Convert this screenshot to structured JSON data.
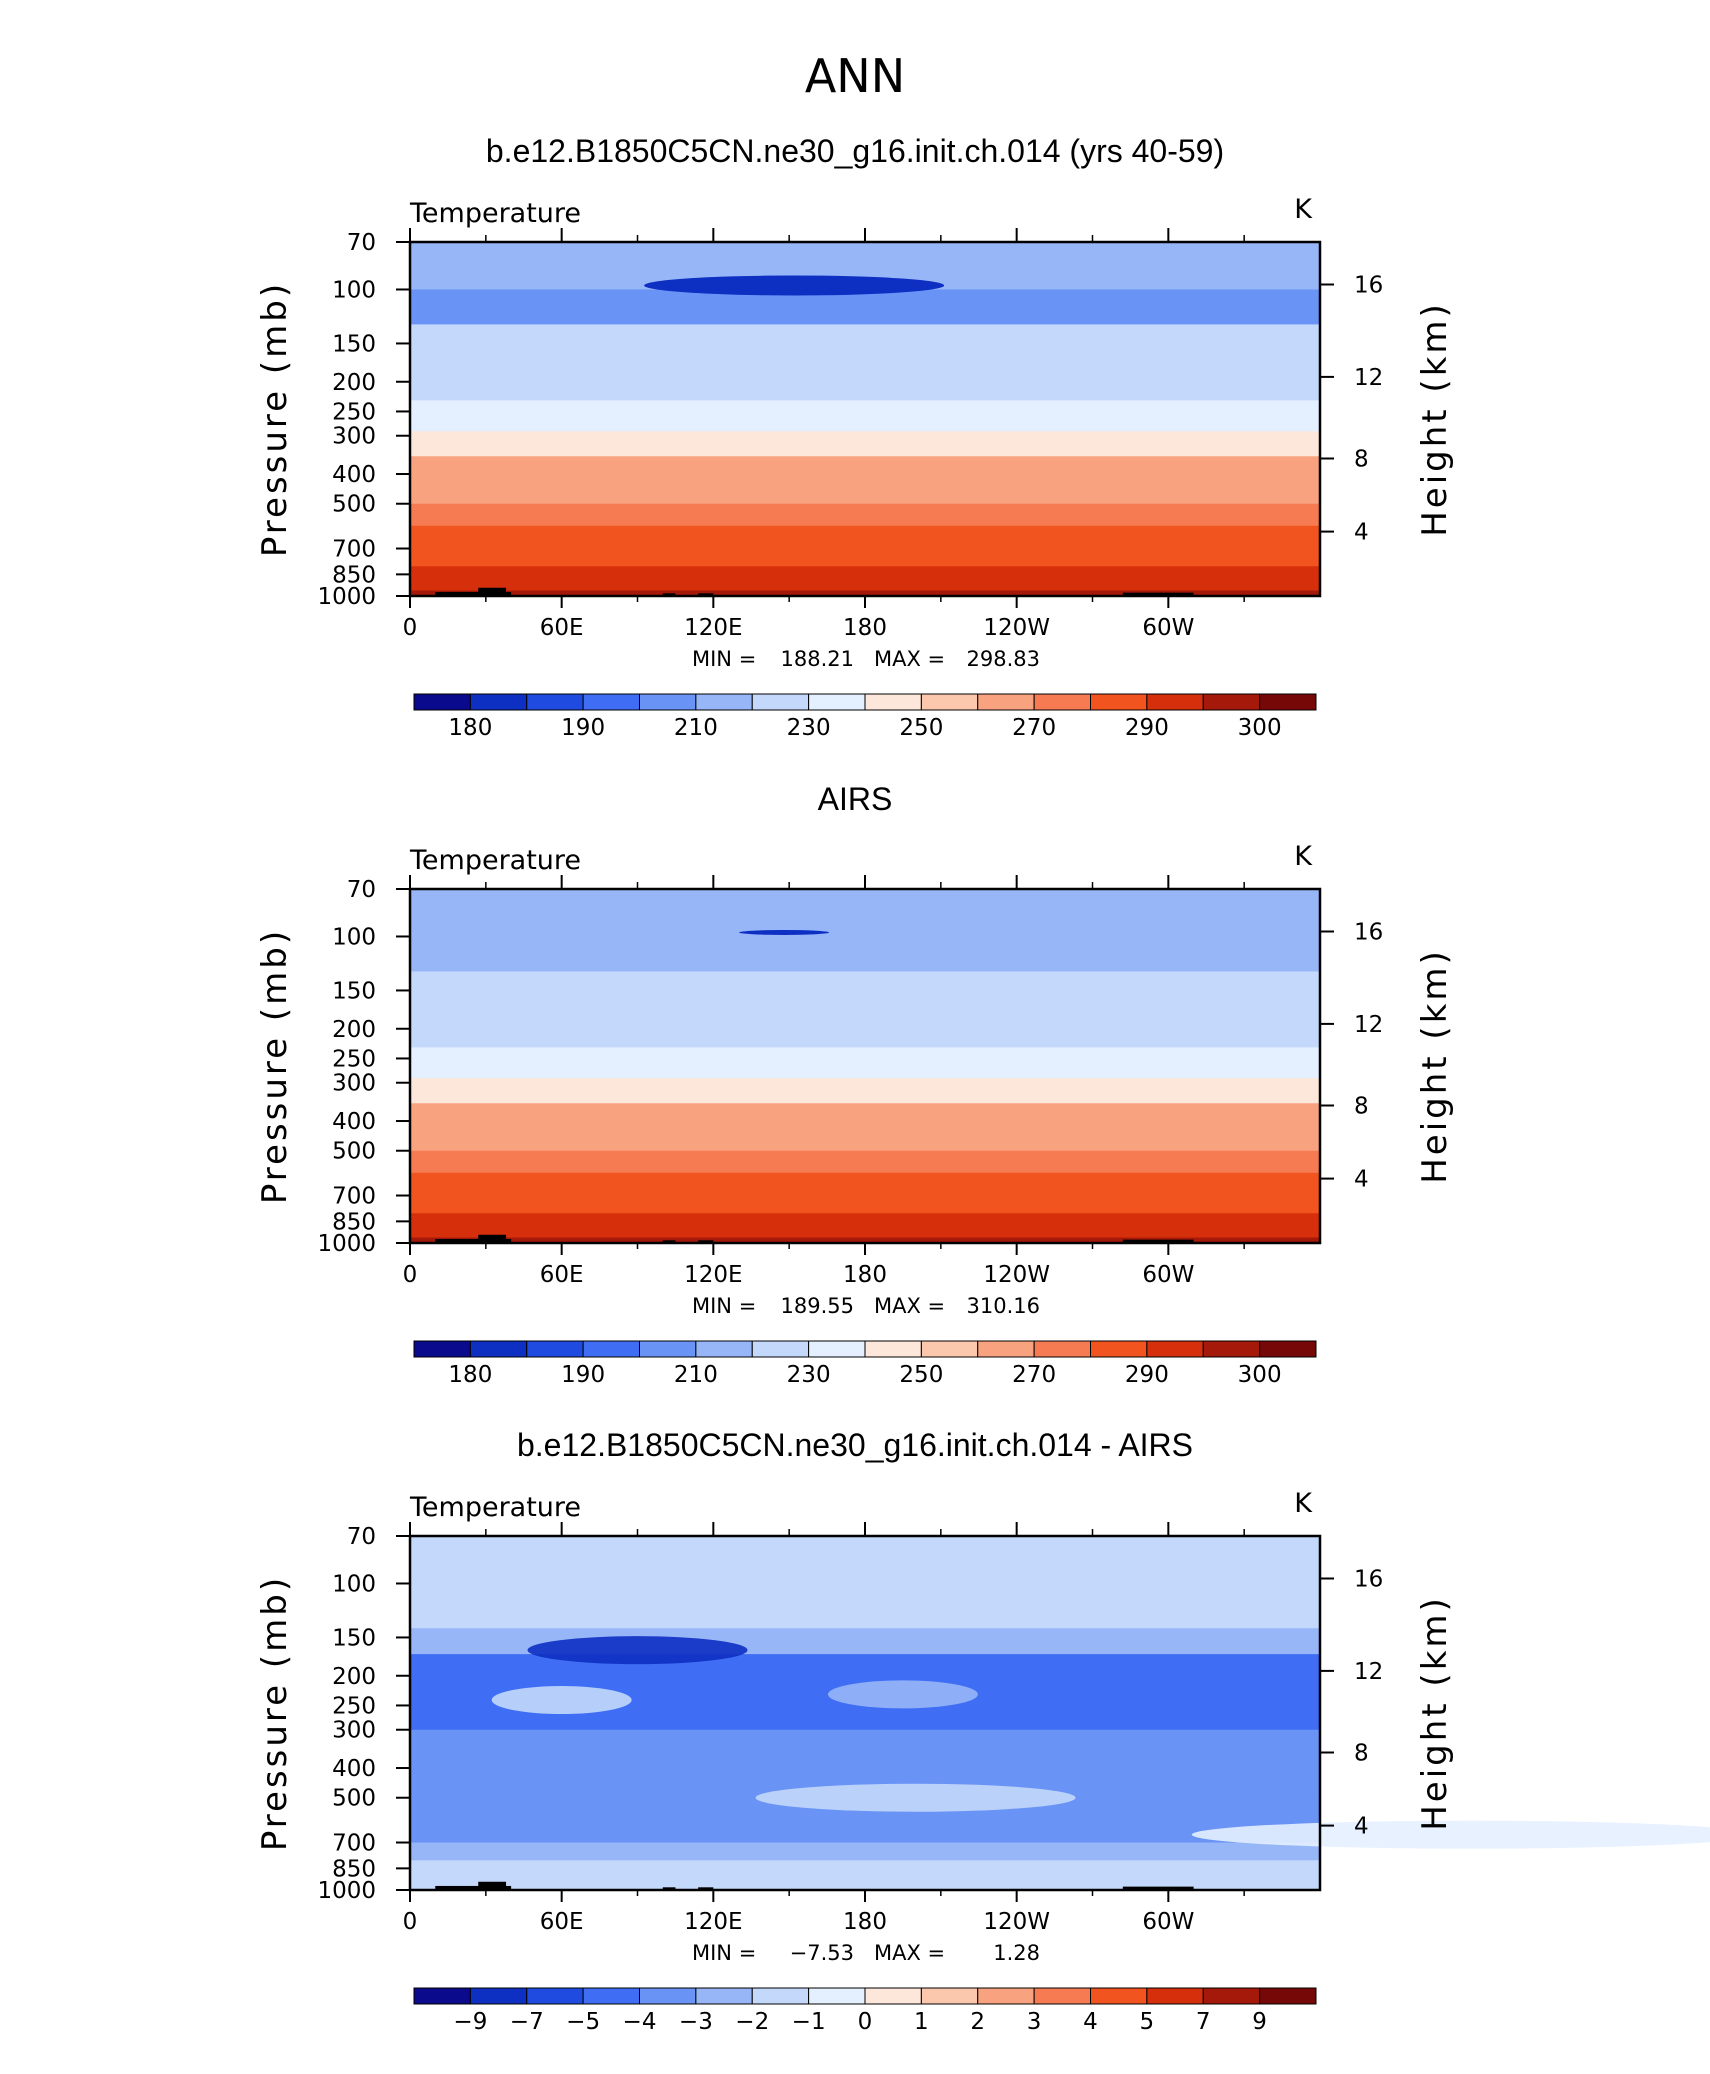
{
  "figure": {
    "title": "ANN",
    "left_axis_label": "Pressure  (mb)",
    "right_axis_label": "Height  (km)"
  },
  "chart_data": [
    {
      "type": "heatmap",
      "title": "b.e12.B1850C5CN.ne30_g16.init.ch.014 (yrs 40-59)",
      "variable": "Temperature",
      "units": "K",
      "ylabel": "Pressure  (mb)",
      "y2label": "Height  (km)",
      "x_ticks": [
        "0",
        "60E",
        "120E",
        "180",
        "120W",
        "60W"
      ],
      "x_range_deg_east": [
        0,
        360
      ],
      "y_ticks_mb": [
        70,
        100,
        150,
        200,
        250,
        300,
        400,
        500,
        700,
        850,
        1000
      ],
      "y_range_mb": [
        70,
        1000
      ],
      "y_scale": "log",
      "y2_ticks_km": [
        4,
        8,
        12,
        16
      ],
      "min_label": "MIN =",
      "min": "188.21",
      "max_label": "MAX =",
      "max": "298.83",
      "colorbar_ticks": [
        "180",
        "190",
        "210",
        "230",
        "250",
        "270",
        "290",
        "300"
      ],
      "levels_mb": [
        70,
        100,
        130,
        170,
        230,
        290,
        350,
        420,
        500,
        590,
        700,
        800,
        900,
        960,
        1000
      ],
      "level_values_K": [
        202,
        197,
        210,
        219,
        228,
        238,
        250,
        258,
        265,
        271,
        277,
        283,
        287,
        290,
        292
      ]
    },
    {
      "type": "heatmap",
      "title": "AIRS",
      "variable": "Temperature",
      "units": "K",
      "ylabel": "Pressure  (mb)",
      "y2label": "Height  (km)",
      "x_ticks": [
        "0",
        "60E",
        "120E",
        "180",
        "120W",
        "60W"
      ],
      "x_range_deg_east": [
        0,
        360
      ],
      "y_ticks_mb": [
        70,
        100,
        150,
        200,
        250,
        300,
        400,
        500,
        700,
        850,
        1000
      ],
      "y_range_mb": [
        70,
        1000
      ],
      "y_scale": "log",
      "y2_ticks_km": [
        4,
        8,
        12,
        16
      ],
      "min_label": "MIN =",
      "min": "189.55",
      "max_label": "MAX =",
      "max": "310.16",
      "colorbar_ticks": [
        "180",
        "190",
        "210",
        "230",
        "250",
        "270",
        "290",
        "300"
      ],
      "levels_mb": [
        70,
        100,
        130,
        170,
        230,
        290,
        350,
        420,
        500,
        590,
        700,
        800,
        900,
        960,
        1000
      ],
      "level_values_K": [
        202,
        200,
        210,
        219,
        228,
        238,
        250,
        258,
        265,
        271,
        277,
        283,
        287,
        292,
        296
      ]
    },
    {
      "type": "heatmap",
      "title": "b.e12.B1850C5CN.ne30_g16.init.ch.014 - AIRS",
      "variable": "Temperature",
      "units": "K",
      "ylabel": "Pressure  (mb)",
      "y2label": "Height  (km)",
      "x_ticks": [
        "0",
        "60E",
        "120E",
        "180",
        "120W",
        "60W"
      ],
      "x_range_deg_east": [
        0,
        360
      ],
      "y_ticks_mb": [
        70,
        100,
        150,
        200,
        250,
        300,
        400,
        500,
        700,
        850,
        1000
      ],
      "y_range_mb": [
        70,
        1000
      ],
      "y_scale": "log",
      "y2_ticks_km": [
        4,
        8,
        12,
        16
      ],
      "min_label": "MIN =",
      "min": "−7.53",
      "max_label": "MAX =",
      "max": "1.28",
      "colorbar_ticks": [
        "−9",
        "−7",
        "−5",
        "−4",
        "−3",
        "−2",
        "−1",
        "0",
        "1",
        "2",
        "3",
        "4",
        "5",
        "7",
        "9"
      ],
      "levels_mb": [
        70,
        110,
        140,
        170,
        300,
        500,
        700,
        800,
        900,
        1000
      ],
      "level_values_K": [
        -1.5,
        -1.2,
        -2.5,
        -4.2,
        -3.5,
        -3.5,
        -3.0,
        -2.0,
        -1.5,
        -2.5
      ]
    }
  ],
  "colors": {
    "palette": [
      "#0a0a8c",
      "#0d2fc2",
      "#1f4be0",
      "#3f6ef5",
      "#6993f5",
      "#97b6f7",
      "#c3d8fb",
      "#e4efff",
      "#fde7da",
      "#fbc8ad",
      "#f8a27f",
      "#f67b53",
      "#f2541f",
      "#d52f0c",
      "#a5190a",
      "#770808"
    ],
    "land": "#000000",
    "frame": "#000000"
  }
}
